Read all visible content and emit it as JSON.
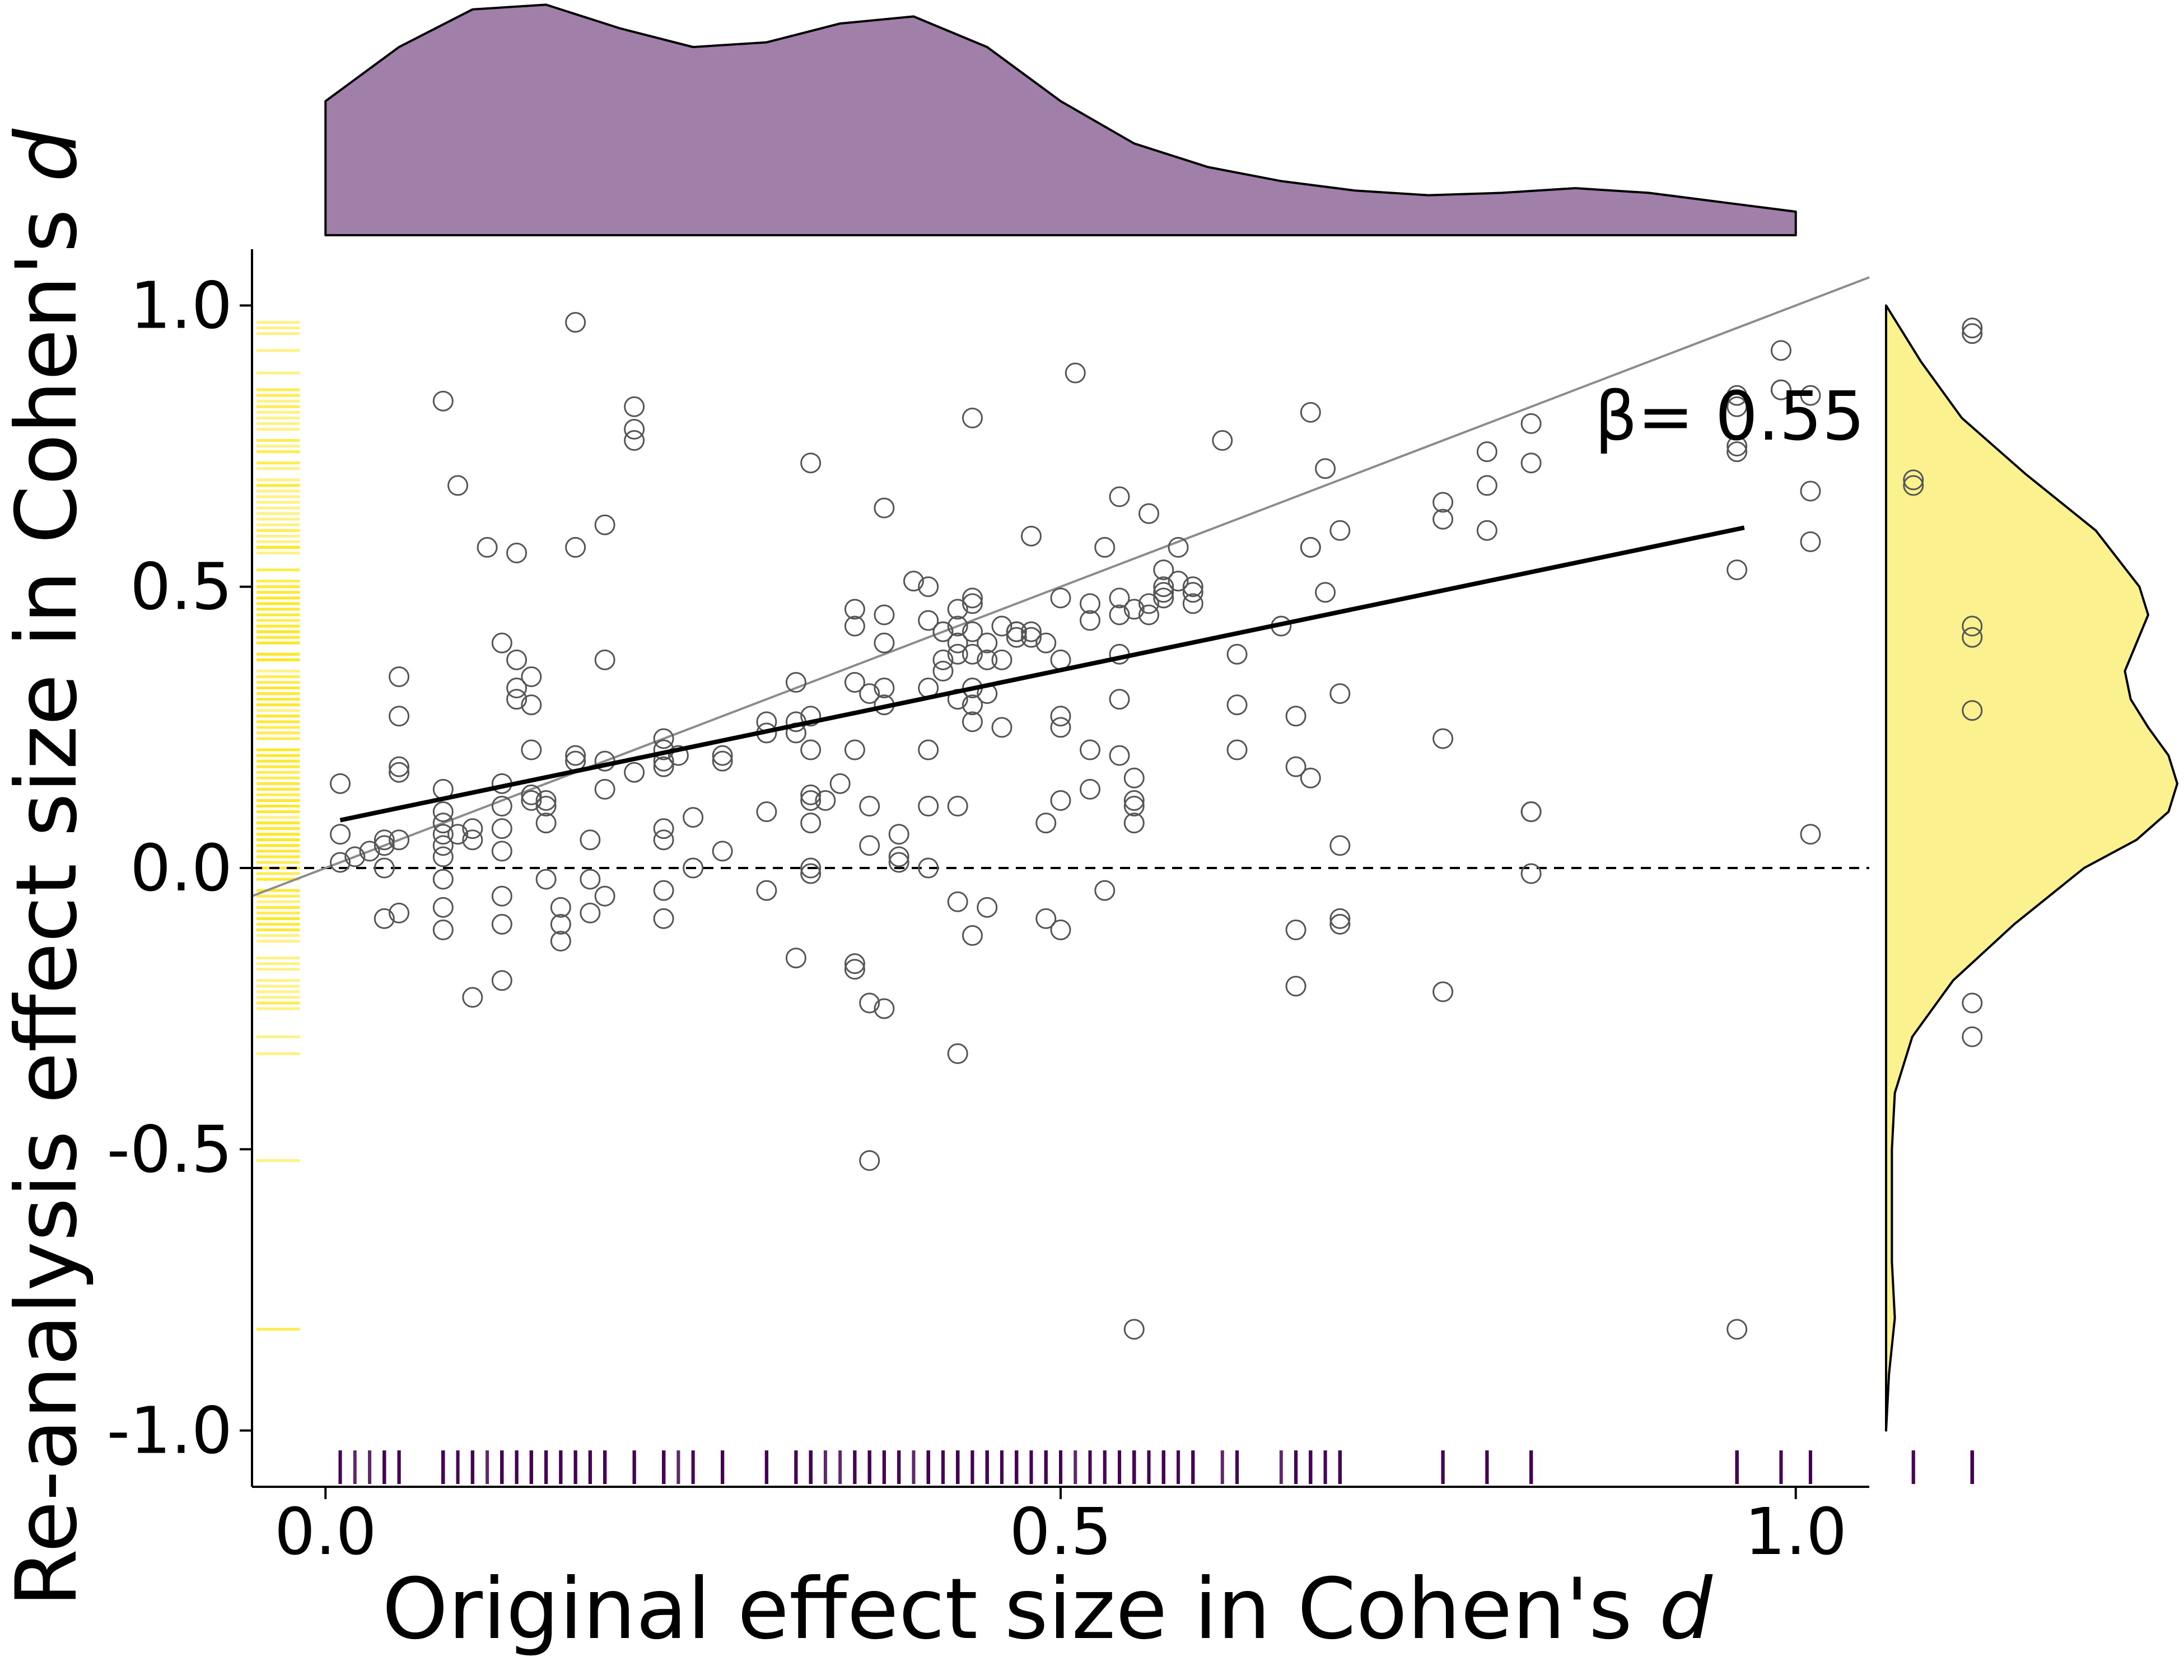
{
  "chart_data": {
    "type": "scatter",
    "title": "",
    "xlabel_prefix": "Original effect size in Cohen's ",
    "ylabel_prefix": "Re-analysis effect size in Cohen's ",
    "label_symbol": "d",
    "xlim": [
      -0.05,
      1.05
    ],
    "ylim": [
      -1.1,
      1.1
    ],
    "x_ticks": [
      0.0,
      0.5,
      1.0
    ],
    "x_tick_labels": [
      "0.0",
      "0.5",
      "1.0"
    ],
    "y_ticks": [
      -1.0,
      -0.5,
      0.0,
      0.5,
      1.0
    ],
    "y_tick_labels": [
      "-1.0",
      "-0.5",
      "0.0",
      "0.5",
      "1.0"
    ],
    "grid": false,
    "annotation": "β= 0.55",
    "regression_line": {
      "x": [
        0.01,
        0.965
      ],
      "y": [
        0.085,
        0.605
      ]
    },
    "identity_line": {
      "x": [
        -0.05,
        1.05
      ],
      "y": [
        -0.05,
        1.05
      ]
    },
    "zero_line": 0.0,
    "colors": {
      "points_edge": "#555555",
      "regression": "#000000",
      "identity": "#8c8c8c",
      "x_marginal_fill": "#a07fa8",
      "y_marginal_fill": "#fbf28f",
      "x_rug": "#440154",
      "y_rug": "#fde725"
    },
    "x_density": {
      "x": [
        0.0,
        0.05,
        0.1,
        0.15,
        0.2,
        0.25,
        0.3,
        0.35,
        0.4,
        0.45,
        0.5,
        0.55,
        0.6,
        0.65,
        0.7,
        0.75,
        0.8,
        0.85,
        0.9,
        0.95,
        1.0
      ],
      "y": [
        0.57,
        0.8,
        0.96,
        0.98,
        0.88,
        0.8,
        0.82,
        0.9,
        0.93,
        0.8,
        0.57,
        0.39,
        0.29,
        0.23,
        0.19,
        0.17,
        0.18,
        0.2,
        0.18,
        0.14,
        0.1
      ]
    },
    "y_density": {
      "y": [
        1.0,
        0.9,
        0.8,
        0.7,
        0.6,
        0.5,
        0.45,
        0.4,
        0.35,
        0.3,
        0.25,
        0.2,
        0.15,
        0.1,
        0.05,
        0.0,
        -0.1,
        -0.2,
        -0.3,
        -0.4,
        -0.5,
        -0.6,
        -0.7,
        -0.8,
        -0.9,
        -1.0
      ],
      "density": [
        0.0,
        0.12,
        0.26,
        0.48,
        0.72,
        0.87,
        0.9,
        0.86,
        0.82,
        0.84,
        0.9,
        0.97,
        1.0,
        0.97,
        0.86,
        0.68,
        0.44,
        0.23,
        0.09,
        0.03,
        0.02,
        0.02,
        0.02,
        0.03,
        0.01,
        0.0
      ]
    },
    "points": [
      [
        0.01,
        0.15
      ],
      [
        0.01,
        0.06
      ],
      [
        0.01,
        0.01
      ],
      [
        0.02,
        0.02
      ],
      [
        0.03,
        0.03
      ],
      [
        0.04,
        0.05
      ],
      [
        0.04,
        0.04
      ],
      [
        0.04,
        0.0
      ],
      [
        0.04,
        -0.09
      ],
      [
        0.05,
        0.18
      ],
      [
        0.05,
        0.17
      ],
      [
        0.05,
        0.27
      ],
      [
        0.05,
        0.34
      ],
      [
        0.05,
        0.05
      ],
      [
        0.05,
        -0.08
      ],
      [
        0.08,
        0.83
      ],
      [
        0.08,
        0.14
      ],
      [
        0.08,
        0.1
      ],
      [
        0.08,
        0.08
      ],
      [
        0.08,
        0.06
      ],
      [
        0.08,
        0.04
      ],
      [
        0.08,
        0.02
      ],
      [
        0.08,
        -0.02
      ],
      [
        0.08,
        -0.07
      ],
      [
        0.08,
        -0.11
      ],
      [
        0.09,
        0.68
      ],
      [
        0.09,
        0.06
      ],
      [
        0.1,
        0.07
      ],
      [
        0.1,
        0.05
      ],
      [
        0.1,
        -0.23
      ],
      [
        0.12,
        0.4
      ],
      [
        0.12,
        0.15
      ],
      [
        0.12,
        0.11
      ],
      [
        0.12,
        0.07
      ],
      [
        0.12,
        0.03
      ],
      [
        0.12,
        -0.05
      ],
      [
        0.12,
        -0.1
      ],
      [
        0.12,
        -0.2
      ],
      [
        0.11,
        0.57
      ],
      [
        0.13,
        0.56
      ],
      [
        0.13,
        0.37
      ],
      [
        0.13,
        0.32
      ],
      [
        0.13,
        0.3
      ],
      [
        0.14,
        0.34
      ],
      [
        0.14,
        0.29
      ],
      [
        0.14,
        0.21
      ],
      [
        0.14,
        0.13
      ],
      [
        0.14,
        0.12
      ],
      [
        0.15,
        0.12
      ],
      [
        0.15,
        0.11
      ],
      [
        0.15,
        0.08
      ],
      [
        0.15,
        -0.02
      ],
      [
        0.16,
        -0.07
      ],
      [
        0.16,
        -0.1
      ],
      [
        0.16,
        -0.13
      ],
      [
        0.17,
        0.97
      ],
      [
        0.17,
        0.57
      ],
      [
        0.17,
        0.2
      ],
      [
        0.17,
        0.19
      ],
      [
        0.18,
        0.05
      ],
      [
        0.18,
        -0.02
      ],
      [
        0.18,
        -0.08
      ],
      [
        0.19,
        0.61
      ],
      [
        0.19,
        0.37
      ],
      [
        0.19,
        0.19
      ],
      [
        0.19,
        0.14
      ],
      [
        0.19,
        -0.05
      ],
      [
        0.21,
        0.82
      ],
      [
        0.21,
        0.78
      ],
      [
        0.21,
        0.76
      ],
      [
        0.21,
        0.17
      ],
      [
        0.23,
        0.23
      ],
      [
        0.23,
        0.21
      ],
      [
        0.23,
        0.19
      ],
      [
        0.23,
        0.18
      ],
      [
        0.23,
        0.07
      ],
      [
        0.23,
        0.05
      ],
      [
        0.23,
        -0.04
      ],
      [
        0.23,
        -0.09
      ],
      [
        0.24,
        0.2
      ],
      [
        0.25,
        0.09
      ],
      [
        0.25,
        0.0
      ],
      [
        0.27,
        0.2
      ],
      [
        0.27,
        0.19
      ],
      [
        0.27,
        0.03
      ],
      [
        0.3,
        0.26
      ],
      [
        0.3,
        0.24
      ],
      [
        0.3,
        0.1
      ],
      [
        0.3,
        -0.04
      ],
      [
        0.32,
        0.33
      ],
      [
        0.32,
        0.26
      ],
      [
        0.32,
        0.24
      ],
      [
        0.32,
        -0.16
      ],
      [
        0.33,
        0.72
      ],
      [
        0.33,
        0.27
      ],
      [
        0.33,
        0.21
      ],
      [
        0.33,
        0.13
      ],
      [
        0.33,
        0.12
      ],
      [
        0.33,
        0.08
      ],
      [
        0.33,
        0.0
      ],
      [
        0.33,
        -0.01
      ],
      [
        0.34,
        0.12
      ],
      [
        0.35,
        0.15
      ],
      [
        0.36,
        0.46
      ],
      [
        0.36,
        0.43
      ],
      [
        0.36,
        0.33
      ],
      [
        0.36,
        0.21
      ],
      [
        0.36,
        -0.17
      ],
      [
        0.36,
        -0.18
      ],
      [
        0.37,
        0.31
      ],
      [
        0.37,
        0.11
      ],
      [
        0.37,
        0.04
      ],
      [
        0.37,
        -0.24
      ],
      [
        0.37,
        -0.52
      ],
      [
        0.38,
        0.64
      ],
      [
        0.38,
        0.45
      ],
      [
        0.38,
        0.4
      ],
      [
        0.38,
        0.32
      ],
      [
        0.38,
        0.29
      ],
      [
        0.38,
        -0.25
      ],
      [
        0.39,
        0.06
      ],
      [
        0.39,
        0.02
      ],
      [
        0.39,
        0.01
      ],
      [
        0.4,
        0.51
      ],
      [
        0.41,
        0.5
      ],
      [
        0.41,
        0.44
      ],
      [
        0.41,
        0.32
      ],
      [
        0.41,
        0.21
      ],
      [
        0.41,
        0.11
      ],
      [
        0.41,
        0.0
      ],
      [
        0.42,
        0.42
      ],
      [
        0.42,
        0.42
      ],
      [
        0.42,
        0.37
      ],
      [
        0.42,
        0.35
      ],
      [
        0.43,
        0.46
      ],
      [
        0.43,
        0.43
      ],
      [
        0.43,
        0.4
      ],
      [
        0.43,
        0.38
      ],
      [
        0.43,
        0.3
      ],
      [
        0.43,
        0.11
      ],
      [
        0.43,
        -0.06
      ],
      [
        0.43,
        -0.33
      ],
      [
        0.44,
        0.8
      ],
      [
        0.44,
        0.48
      ],
      [
        0.44,
        0.47
      ],
      [
        0.44,
        0.42
      ],
      [
        0.44,
        0.38
      ],
      [
        0.44,
        0.32
      ],
      [
        0.44,
        0.29
      ],
      [
        0.44,
        0.26
      ],
      [
        0.44,
        -0.12
      ],
      [
        0.45,
        0.4
      ],
      [
        0.45,
        0.37
      ],
      [
        0.45,
        0.31
      ],
      [
        0.45,
        -0.07
      ],
      [
        0.46,
        0.43
      ],
      [
        0.46,
        0.37
      ],
      [
        0.46,
        0.25
      ],
      [
        0.47,
        0.42
      ],
      [
        0.47,
        0.42
      ],
      [
        0.47,
        0.41
      ],
      [
        0.47,
        0.42
      ],
      [
        0.48,
        0.59
      ],
      [
        0.48,
        0.42
      ],
      [
        0.48,
        0.41
      ],
      [
        0.49,
        0.4
      ],
      [
        0.49,
        0.08
      ],
      [
        0.49,
        -0.09
      ],
      [
        0.5,
        0.48
      ],
      [
        0.5,
        0.37
      ],
      [
        0.5,
        0.27
      ],
      [
        0.5,
        0.25
      ],
      [
        0.5,
        0.12
      ],
      [
        0.5,
        -0.11
      ],
      [
        0.51,
        0.88
      ],
      [
        0.52,
        0.47
      ],
      [
        0.52,
        0.44
      ],
      [
        0.52,
        0.14
      ],
      [
        0.52,
        0.21
      ],
      [
        0.53,
        0.57
      ],
      [
        0.53,
        -0.04
      ],
      [
        0.54,
        0.66
      ],
      [
        0.54,
        0.48
      ],
      [
        0.54,
        0.45
      ],
      [
        0.54,
        0.38
      ],
      [
        0.54,
        0.3
      ],
      [
        0.54,
        0.2
      ],
      [
        0.55,
        0.46
      ],
      [
        0.55,
        0.16
      ],
      [
        0.55,
        0.12
      ],
      [
        0.55,
        0.11
      ],
      [
        0.55,
        0.08
      ],
      [
        0.55,
        -0.82
      ],
      [
        0.56,
        0.63
      ],
      [
        0.56,
        0.47
      ],
      [
        0.56,
        0.45
      ],
      [
        0.57,
        0.53
      ],
      [
        0.57,
        0.5
      ],
      [
        0.57,
        0.49
      ],
      [
        0.57,
        0.48
      ],
      [
        0.58,
        0.57
      ],
      [
        0.58,
        0.51
      ],
      [
        0.59,
        0.5
      ],
      [
        0.59,
        0.49
      ],
      [
        0.59,
        0.47
      ],
      [
        0.61,
        0.76
      ],
      [
        0.62,
        0.38
      ],
      [
        0.62,
        0.29
      ],
      [
        0.62,
        0.21
      ],
      [
        0.65,
        0.43
      ],
      [
        0.66,
        0.27
      ],
      [
        0.66,
        0.18
      ],
      [
        0.66,
        -0.11
      ],
      [
        0.66,
        -0.21
      ],
      [
        0.67,
        0.81
      ],
      [
        0.67,
        0.57
      ],
      [
        0.67,
        0.57
      ],
      [
        0.67,
        0.16
      ],
      [
        0.68,
        0.71
      ],
      [
        0.68,
        0.49
      ],
      [
        0.69,
        0.6
      ],
      [
        0.69,
        0.31
      ],
      [
        0.69,
        0.04
      ],
      [
        0.69,
        -0.09
      ],
      [
        0.69,
        -0.1
      ],
      [
        0.76,
        0.65
      ],
      [
        0.76,
        0.62
      ],
      [
        0.76,
        0.23
      ],
      [
        0.76,
        -0.22
      ],
      [
        0.79,
        0.74
      ],
      [
        0.79,
        0.68
      ],
      [
        0.79,
        0.6
      ],
      [
        0.82,
        0.79
      ],
      [
        0.82,
        0.72
      ],
      [
        0.82,
        0.1
      ],
      [
        0.82,
        0.1
      ],
      [
        0.82,
        -0.01
      ],
      [
        0.96,
        0.82
      ],
      [
        0.96,
        0.84
      ],
      [
        0.96,
        0.74
      ],
      [
        0.96,
        0.75
      ],
      [
        0.96,
        0.53
      ],
      [
        0.96,
        -0.82
      ],
      [
        0.99,
        0.92
      ],
      [
        0.99,
        0.85
      ],
      [
        0.99,
        0.85
      ],
      [
        1.01,
        0.84
      ],
      [
        1.01,
        0.67
      ],
      [
        1.01,
        0.58
      ],
      [
        1.01,
        0.06
      ],
      [
        1.08,
        0.69
      ],
      [
        1.08,
        0.68
      ],
      [
        1.12,
        0.96
      ],
      [
        1.12,
        0.95
      ],
      [
        1.12,
        0.43
      ],
      [
        1.12,
        0.41
      ],
      [
        1.12,
        0.28
      ],
      [
        1.12,
        -0.24
      ],
      [
        1.12,
        -0.3
      ]
    ]
  }
}
